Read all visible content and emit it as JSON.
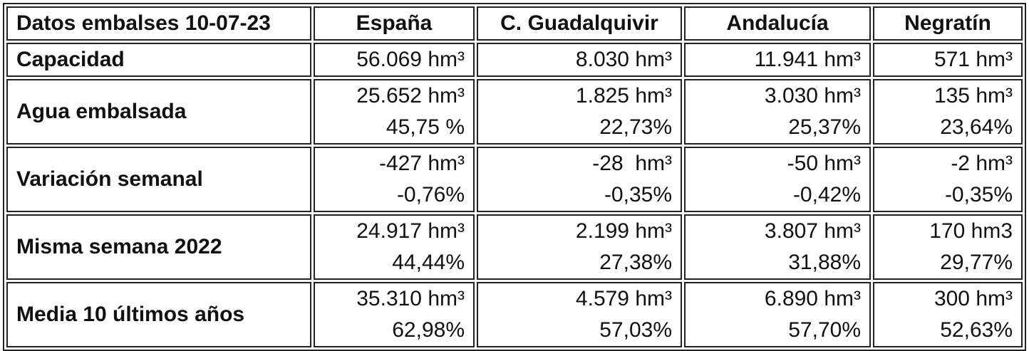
{
  "table": {
    "header": [
      "Datos embalses 10-07-23",
      "España",
      "C. Guadalquivir",
      "Andalucía",
      "Negratín"
    ],
    "rows": [
      {
        "label": "Capacidad",
        "cells": [
          [
            "56.069 hm³"
          ],
          [
            "8.030 hm³"
          ],
          [
            "11.941 hm³"
          ],
          [
            "571 hm³"
          ]
        ]
      },
      {
        "label": "Agua embalsada",
        "cells": [
          [
            "25.652 hm³",
            "45,75 %"
          ],
          [
            "1.825 hm³",
            "22,73%"
          ],
          [
            "3.030 hm³",
            "25,37%"
          ],
          [
            "135 hm³",
            "23,64%"
          ]
        ]
      },
      {
        "label": "Variación semanal",
        "cells": [
          [
            "-427 hm³",
            "-0,76%"
          ],
          [
            "-28  hm³",
            "-0,35%"
          ],
          [
            "-50 hm³",
            "-0,42%"
          ],
          [
            "-2 hm³",
            "-0,35%"
          ]
        ]
      },
      {
        "label": "Misma semana 2022",
        "cells": [
          [
            "24.917 hm³",
            "44,44%"
          ],
          [
            "2.199 hm³",
            "27,38%"
          ],
          [
            "3.807 hm³",
            "31,88%"
          ],
          [
            "170 hm3",
            "29,77%"
          ]
        ]
      },
      {
        "label": "Media 10 últimos años",
        "cells": [
          [
            "35.310 hm³",
            "62,98%"
          ],
          [
            "4.579 hm³",
            "57,03%"
          ],
          [
            "6.890 hm³",
            "57,70%"
          ],
          [
            "300 hm³",
            "52,63%"
          ]
        ]
      }
    ]
  }
}
